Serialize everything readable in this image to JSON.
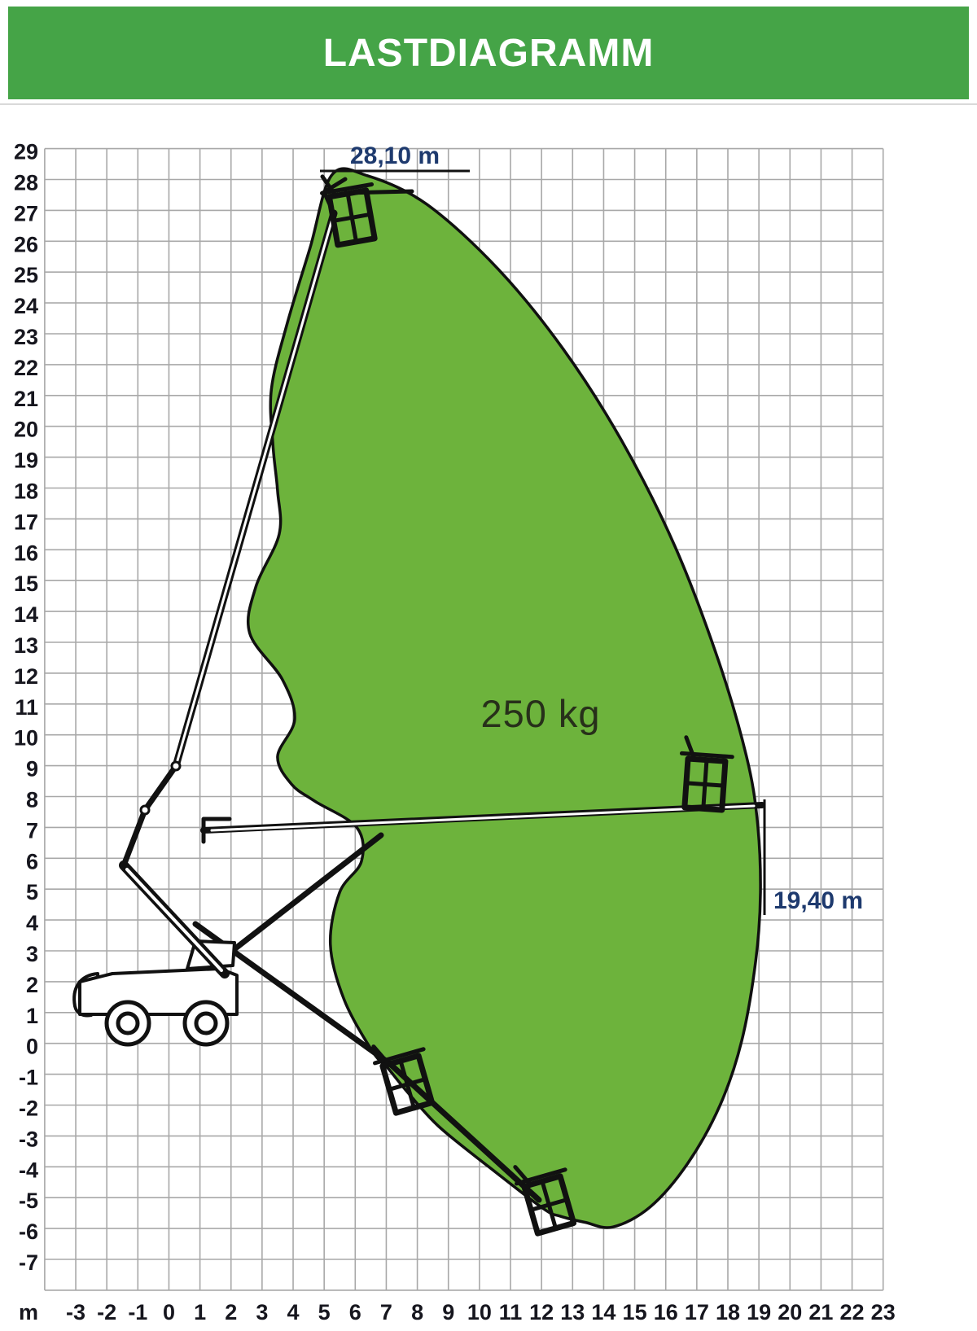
{
  "header": {
    "title": "LASTDIAGRAMM"
  },
  "annotations": {
    "max_height": "28,10 m",
    "max_outreach": "19,40 m",
    "capacity": "250 kg"
  },
  "axis_unit_label": "m",
  "colors": {
    "header_green": "#45a447",
    "envelope_green": "#6db33c",
    "envelope_outline": "#101010",
    "grid": "#a8a8a8",
    "annotation_text": "#1e3a6e",
    "annotation_line": "#111111",
    "capacity_text": "#27301a",
    "machine_ink": "#111111"
  },
  "chart_data": {
    "type": "area",
    "title": "LASTDIAGRAMM",
    "description": "Working envelope (load diagram) of an articulated telescopic boom lift, rated capacity 250 kg, max working height 28,10 m, max outreach 19,40 m",
    "x_axis": {
      "unit": "m",
      "min": -4,
      "max": 23,
      "tick_labels": [
        -3,
        -2,
        -1,
        0,
        1,
        2,
        3,
        4,
        5,
        6,
        7,
        8,
        9,
        10,
        11,
        12,
        13,
        14,
        15,
        16,
        17,
        18,
        19,
        20,
        21,
        22,
        23
      ]
    },
    "y_axis": {
      "unit": "m",
      "min": -8,
      "max": 29,
      "tick_labels": [
        29,
        28,
        27,
        26,
        25,
        24,
        23,
        22,
        21,
        20,
        19,
        18,
        17,
        16,
        15,
        14,
        13,
        12,
        11,
        10,
        9,
        8,
        7,
        6,
        5,
        4,
        3,
        2,
        1,
        0,
        -1,
        -2,
        -3,
        -4,
        -5,
        -6,
        -7
      ]
    },
    "grid": true,
    "capacity_kg": 250,
    "max_height_m": 28.1,
    "max_outreach_m": 19.4,
    "envelope_points_m": [
      [
        5.25,
        28.15
      ],
      [
        6.4,
        28.12
      ],
      [
        8.3,
        27.2
      ],
      [
        10.6,
        25.1
      ],
      [
        12.7,
        22.5
      ],
      [
        14.6,
        19.5
      ],
      [
        16.3,
        16.1
      ],
      [
        17.7,
        12.4
      ],
      [
        18.6,
        9.3
      ],
      [
        18.95,
        7.2
      ],
      [
        19.05,
        4.9
      ],
      [
        18.9,
        2.7
      ],
      [
        18.45,
        0.1
      ],
      [
        17.75,
        -2.0
      ],
      [
        16.7,
        -3.9
      ],
      [
        15.5,
        -5.3
      ],
      [
        14.3,
        -5.95
      ],
      [
        13.4,
        -5.8
      ],
      [
        12.6,
        -5.6
      ],
      [
        12.05,
        -5.35
      ],
      [
        10.3,
        -4.0
      ],
      [
        8.7,
        -2.7
      ],
      [
        7.7,
        -1.6
      ],
      [
        7.05,
        -0.8
      ],
      [
        6.55,
        -0.25
      ],
      [
        5.65,
        1.4
      ],
      [
        5.2,
        3.2
      ],
      [
        5.5,
        4.9
      ],
      [
        6.2,
        5.9
      ],
      [
        6.05,
        7.0
      ],
      [
        4.7,
        7.85
      ],
      [
        3.95,
        8.4
      ],
      [
        3.5,
        9.3
      ],
      [
        4.05,
        10.5
      ],
      [
        3.65,
        11.8
      ],
      [
        2.6,
        13.3
      ],
      [
        2.8,
        14.8
      ],
      [
        3.55,
        16.5
      ],
      [
        3.5,
        17.9
      ],
      [
        3.35,
        19.4
      ],
      [
        3.3,
        21.2
      ],
      [
        3.8,
        23.3
      ],
      [
        4.55,
        25.8
      ]
    ]
  }
}
